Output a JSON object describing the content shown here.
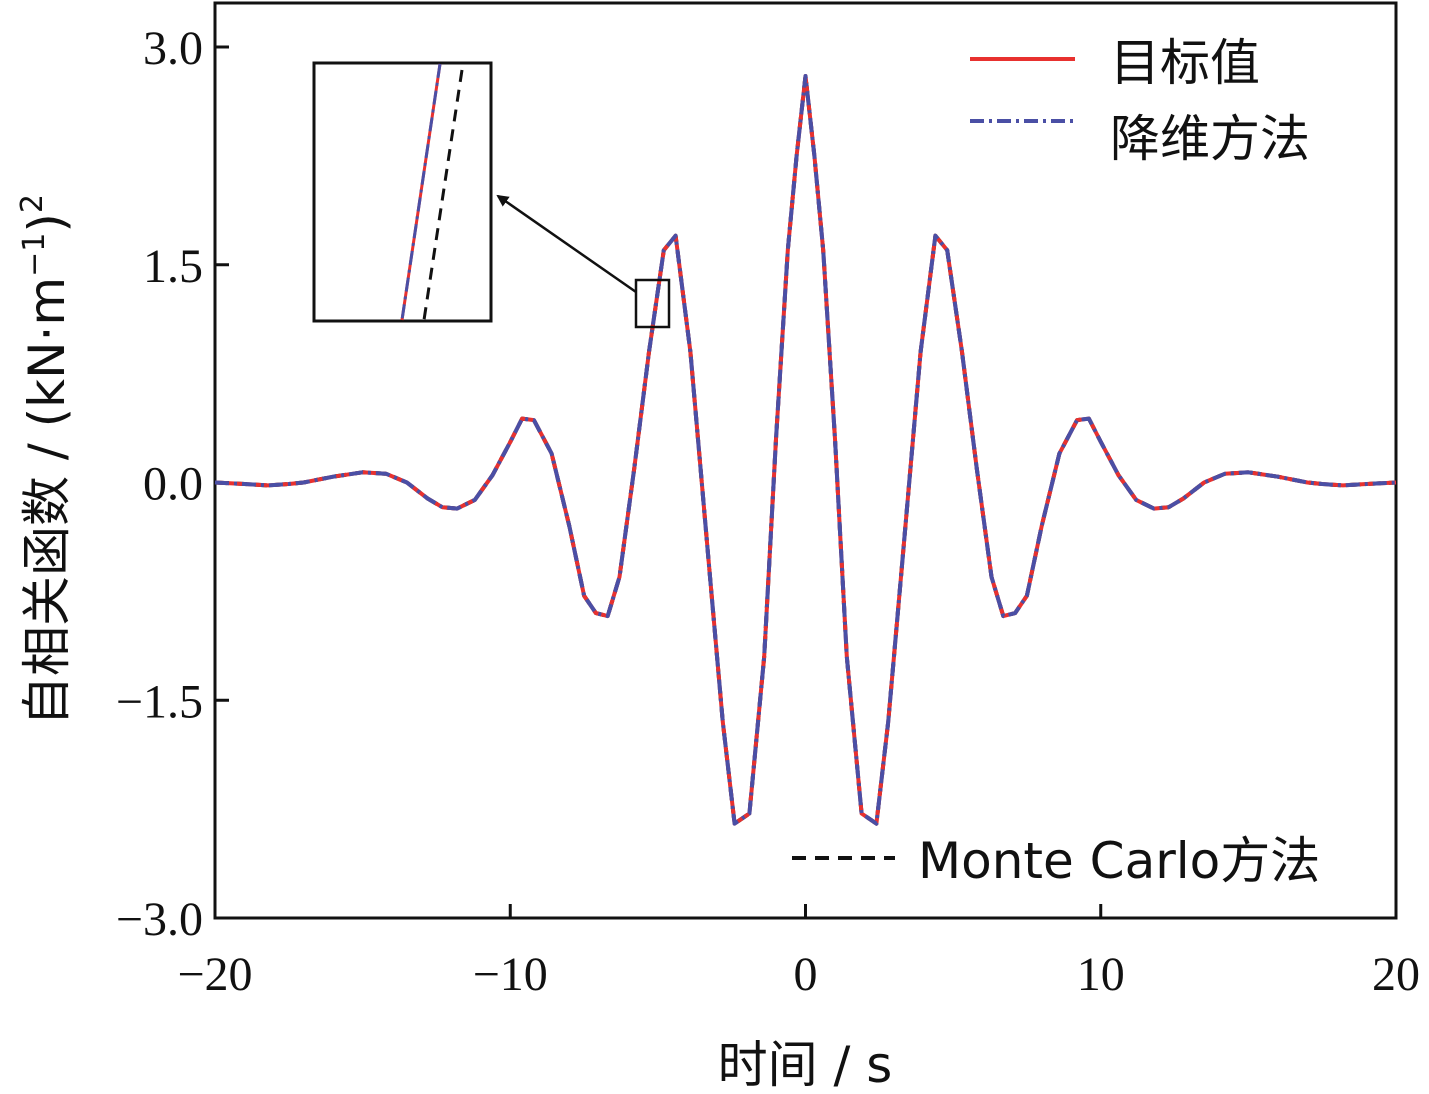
{
  "chart_data": {
    "type": "line",
    "xlabel": "时间 / s",
    "ylabel": "自相关函数 / (kN·m",
    "ylabel_sup1": "−1",
    "ylabel_close": ")",
    "ylabel_sup2": "2",
    "xlim": [
      -20,
      20
    ],
    "ylim": [
      -3.0,
      3.0
    ],
    "x_ticks": [
      -20,
      -10,
      0,
      10,
      20
    ],
    "x_tick_labels": [
      "−20",
      "−10",
      "0",
      "10",
      "20"
    ],
    "y_ticks": [
      3.0,
      1.5,
      0.0,
      -1.5,
      -3.0
    ],
    "y_tick_labels": [
      "3.0",
      "1.5",
      "0.0",
      "−1.5",
      "−3.0"
    ],
    "grid": false,
    "legend": {
      "placement_upper": "top-right",
      "placement_lower": "bottom-right",
      "entries": [
        "目标值",
        "降维方法",
        "Monte Carlo方法"
      ]
    },
    "inset": {
      "x_range": [
        -5.4,
        -4.6
      ],
      "y_range": [
        1.1,
        1.4
      ],
      "note": "zoomed view showing small offset of Monte Carlo curve"
    },
    "series": [
      {
        "name": "目标值",
        "color": "#e8312f",
        "style": "solid",
        "x": [
          -20,
          -19,
          -18.2,
          -17.5,
          -17,
          -16,
          -15,
          -14.2,
          -13.5,
          -12.8,
          -12.3,
          -11.8,
          -11.2,
          -10.6,
          -10,
          -9.6,
          -9.2,
          -8.6,
          -8,
          -7.5,
          -7.1,
          -6.7,
          -6.3,
          -5.8,
          -5.3,
          -4.8,
          -4.4,
          -3.9,
          -3.3,
          -2.8,
          -2.4,
          -1.9,
          -1.4,
          -1.0,
          -0.6,
          -0.3,
          0,
          0.3,
          0.6,
          1.0,
          1.4,
          1.9,
          2.4,
          2.8,
          3.3,
          3.9,
          4.4,
          4.8,
          5.3,
          5.8,
          6.3,
          6.7,
          7.1,
          7.5,
          8,
          8.6,
          9.2,
          9.6,
          10,
          10.6,
          11.2,
          11.8,
          12.3,
          12.8,
          13.5,
          14.2,
          15,
          16,
          17,
          17.5,
          18.2,
          19,
          20
        ],
        "values": [
          0.0,
          -0.01,
          -0.02,
          -0.01,
          0.0,
          0.04,
          0.07,
          0.06,
          0.0,
          -0.11,
          -0.17,
          -0.18,
          -0.12,
          0.05,
          0.28,
          0.44,
          0.43,
          0.2,
          -0.3,
          -0.78,
          -0.9,
          -0.92,
          -0.65,
          0.1,
          0.9,
          1.6,
          1.7,
          0.9,
          -0.5,
          -1.65,
          -2.35,
          -2.28,
          -1.2,
          0.3,
          1.6,
          2.25,
          2.8,
          2.25,
          1.6,
          0.3,
          -1.2,
          -2.28,
          -2.35,
          -1.65,
          -0.5,
          0.9,
          1.7,
          1.6,
          0.9,
          0.1,
          -0.65,
          -0.92,
          -0.9,
          -0.78,
          -0.3,
          0.2,
          0.43,
          0.44,
          0.28,
          0.05,
          -0.12,
          -0.18,
          -0.17,
          -0.11,
          0.0,
          0.06,
          0.07,
          0.04,
          0.0,
          -0.01,
          -0.02,
          -0.01,
          0.0
        ]
      },
      {
        "name": "降维方法",
        "color": "#4a4fa5",
        "style": "dashdot",
        "same_as": "目标值"
      },
      {
        "name": "Monte Carlo方法",
        "color": "#111111",
        "style": "dashed",
        "same_as": "目标值"
      }
    ]
  }
}
